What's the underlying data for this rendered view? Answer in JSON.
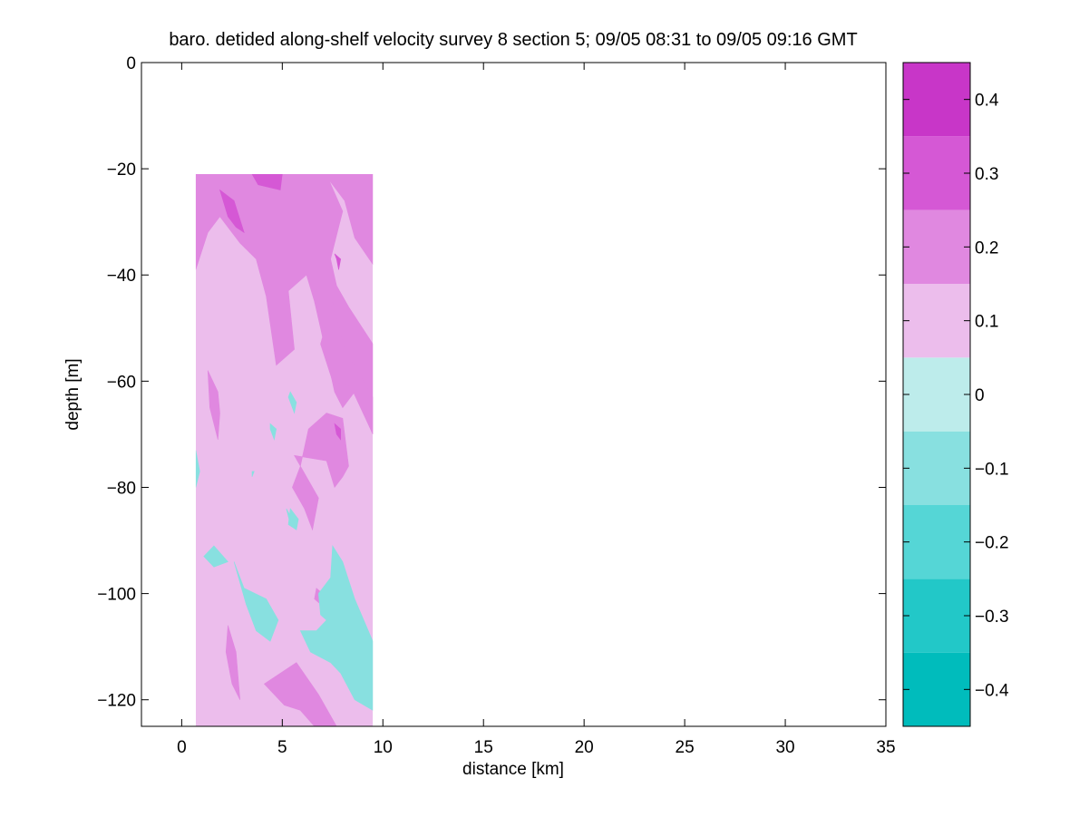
{
  "chart_data": {
    "type": "heatmap",
    "title": "baro. detided along-shelf velocity survey 8 section 5; 09/05 08:31 to 09/05 09:16 GMT",
    "xlabel": "distance [km]",
    "ylabel": "depth [m]",
    "xlim": [
      -2,
      35
    ],
    "ylim": [
      -125,
      0
    ],
    "xticks": [
      0,
      5,
      10,
      15,
      20,
      25,
      30,
      35
    ],
    "yticks": [
      0,
      -20,
      -40,
      -60,
      -80,
      -100,
      -120
    ],
    "data_extent": {
      "x": [
        0.7,
        9.5
      ],
      "y": [
        -125,
        -21
      ]
    },
    "background_class": 5,
    "colorbar": {
      "levels": [
        -0.45,
        -0.35,
        -0.25,
        -0.15,
        -0.05,
        0.05,
        0.15,
        0.25,
        0.35,
        0.45
      ],
      "ticks": [
        -0.4,
        -0.3,
        -0.2,
        -0.1,
        0,
        0.1,
        0.2,
        0.3,
        0.4
      ],
      "tick_labels": [
        "−0.4",
        "−0.3",
        "−0.2",
        "−0.1",
        "0",
        "0.1",
        "0.2",
        "0.3",
        "0.4"
      ],
      "colors": [
        "#00bcbc",
        "#22c8c8",
        "#55d6d6",
        "#88e0e0",
        "#bdeceb",
        "#ecbdec",
        "#e088e0",
        "#d558d5",
        "#c836c8",
        "#bb00bb"
      ]
    },
    "patches": [
      {
        "class": 6,
        "points": [
          [
            0.7,
            -21
          ],
          [
            7.2,
            -21
          ],
          [
            9.5,
            -21
          ],
          [
            9.5,
            -38
          ],
          [
            8.6,
            -33
          ],
          [
            8.1,
            -26
          ],
          [
            7.3,
            -22
          ],
          [
            8.0,
            -28
          ],
          [
            7.4,
            -37
          ],
          [
            7.7,
            -42
          ],
          [
            8.3,
            -46
          ],
          [
            9.5,
            -53
          ],
          [
            9.5,
            -70
          ],
          [
            8.6,
            -62
          ],
          [
            8.0,
            -65
          ],
          [
            7.6,
            -62
          ],
          [
            6.9,
            -50
          ],
          [
            6.6,
            -45
          ],
          [
            6.2,
            -40
          ],
          [
            5.3,
            -43
          ],
          [
            5.6,
            -54
          ],
          [
            4.7,
            -57
          ],
          [
            4.2,
            -44
          ],
          [
            3.7,
            -37
          ],
          [
            2.9,
            -34
          ],
          [
            1.9,
            -29
          ],
          [
            1.3,
            -32
          ],
          [
            0.7,
            -39
          ]
        ]
      },
      {
        "class": 6,
        "points": [
          [
            6.9,
            -53
          ],
          [
            7.5,
            -45
          ],
          [
            8.1,
            -54
          ],
          [
            9.5,
            -63
          ],
          [
            9.5,
            -70
          ],
          [
            8.4,
            -61
          ],
          [
            7.5,
            -60
          ]
        ]
      },
      {
        "class": 6,
        "points": [
          [
            1.3,
            -58
          ],
          [
            1.8,
            -62
          ],
          [
            1.9,
            -66
          ],
          [
            1.8,
            -71
          ],
          [
            1.4,
            -65
          ]
        ]
      },
      {
        "class": 6,
        "points": [
          [
            5.6,
            -74
          ],
          [
            7.2,
            -75
          ],
          [
            7.6,
            -80
          ],
          [
            8.0,
            -78
          ],
          [
            8.3,
            -76
          ],
          [
            8.0,
            -67
          ],
          [
            7.2,
            -66
          ],
          [
            6.3,
            -69
          ],
          [
            5.9,
            -76
          ],
          [
            5.5,
            -80
          ],
          [
            6.1,
            -84
          ],
          [
            6.5,
            -88
          ],
          [
            6.8,
            -82
          ]
        ]
      },
      {
        "class": 6,
        "points": [
          [
            2.3,
            -106
          ],
          [
            2.7,
            -111
          ],
          [
            2.9,
            -120
          ],
          [
            2.5,
            -117
          ],
          [
            2.2,
            -111
          ]
        ]
      },
      {
        "class": 6,
        "points": [
          [
            4.1,
            -117
          ],
          [
            5.7,
            -113
          ],
          [
            6.8,
            -119
          ],
          [
            7.7,
            -125
          ],
          [
            6.6,
            -125
          ],
          [
            5.9,
            -122
          ],
          [
            5.1,
            -121
          ]
        ]
      },
      {
        "class": 6,
        "points": [
          [
            6.7,
            -99
          ],
          [
            7.0,
            -100
          ],
          [
            6.9,
            -102
          ],
          [
            6.6,
            -101
          ]
        ]
      },
      {
        "class": 7,
        "points": [
          [
            3.5,
            -21
          ],
          [
            5.0,
            -21
          ],
          [
            4.9,
            -24
          ],
          [
            3.8,
            -23
          ]
        ]
      },
      {
        "class": 7,
        "points": [
          [
            1.9,
            -24
          ],
          [
            2.6,
            -26
          ],
          [
            3.1,
            -32
          ],
          [
            2.7,
            -31
          ],
          [
            2.3,
            -29
          ]
        ]
      },
      {
        "class": 7,
        "points": [
          [
            7.6,
            -36
          ],
          [
            7.9,
            -37
          ],
          [
            7.8,
            -39
          ],
          [
            7.7,
            -37
          ]
        ]
      },
      {
        "class": 7,
        "points": [
          [
            7.6,
            -68
          ],
          [
            7.9,
            -69
          ],
          [
            7.9,
            -71
          ],
          [
            7.7,
            -70
          ]
        ]
      },
      {
        "class": 3,
        "points": [
          [
            0.7,
            -73
          ],
          [
            0.9,
            -77
          ],
          [
            0.7,
            -80
          ]
        ]
      },
      {
        "class": 3,
        "points": [
          [
            5.4,
            -62
          ],
          [
            5.7,
            -64
          ],
          [
            5.6,
            -66
          ],
          [
            5.3,
            -63
          ]
        ]
      },
      {
        "class": 3,
        "points": [
          [
            4.4,
            -68
          ],
          [
            4.7,
            -69
          ],
          [
            4.6,
            -71
          ],
          [
            4.4,
            -69
          ]
        ]
      },
      {
        "class": 3,
        "points": [
          [
            3.5,
            -77
          ],
          [
            3.6,
            -77
          ],
          [
            3.5,
            -78
          ]
        ]
      },
      {
        "class": 3,
        "points": [
          [
            5.2,
            -84
          ],
          [
            5.5,
            -86
          ],
          [
            5.7,
            -88
          ],
          [
            5.4,
            -87
          ]
        ]
      },
      {
        "class": 3,
        "points": [
          [
            1.1,
            -93
          ],
          [
            1.6,
            -91
          ],
          [
            2.3,
            -94
          ],
          [
            1.6,
            -95
          ]
        ]
      },
      {
        "class": 3,
        "points": [
          [
            2.6,
            -94
          ],
          [
            3.1,
            -99
          ],
          [
            4.2,
            -101
          ],
          [
            4.8,
            -105
          ],
          [
            4.4,
            -109
          ],
          [
            3.7,
            -107
          ],
          [
            3.2,
            -102
          ]
        ]
      },
      {
        "class": 3,
        "points": [
          [
            6.8,
            -100
          ],
          [
            7.4,
            -97
          ],
          [
            7.5,
            -91
          ],
          [
            8.0,
            -94
          ],
          [
            8.6,
            -101
          ],
          [
            9.5,
            -109
          ],
          [
            9.5,
            -122
          ],
          [
            8.6,
            -120
          ],
          [
            7.9,
            -115
          ],
          [
            7.4,
            -113
          ],
          [
            6.4,
            -111
          ],
          [
            5.9,
            -107
          ],
          [
            6.7,
            -107
          ],
          [
            7.2,
            -105
          ],
          [
            6.9,
            -104
          ]
        ]
      },
      {
        "class": 3,
        "points": [
          [
            5.4,
            -84
          ],
          [
            5.8,
            -86
          ],
          [
            5.7,
            -88
          ],
          [
            5.3,
            -87
          ]
        ]
      }
    ]
  }
}
